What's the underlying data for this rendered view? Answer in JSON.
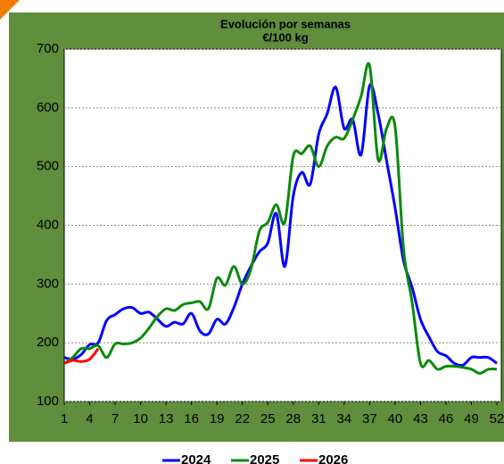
{
  "chart_data": {
    "type": "line",
    "title": "Evolución por semanas",
    "subtitle": "€/100 kg",
    "x": [
      1,
      2,
      3,
      4,
      5,
      6,
      7,
      8,
      9,
      10,
      11,
      12,
      13,
      14,
      15,
      16,
      17,
      18,
      19,
      20,
      21,
      22,
      23,
      24,
      25,
      26,
      27,
      28,
      29,
      30,
      31,
      32,
      33,
      34,
      35,
      36,
      37,
      38,
      39,
      40,
      41,
      42,
      43,
      44,
      45,
      46,
      47,
      48,
      49,
      50,
      51,
      52
    ],
    "xlim": [
      1,
      52
    ],
    "xticks": [
      1,
      4,
      7,
      10,
      13,
      16,
      19,
      22,
      25,
      28,
      31,
      34,
      37,
      40,
      43,
      46,
      49,
      52
    ],
    "ylim": [
      100,
      700
    ],
    "yticks": [
      100,
      200,
      300,
      400,
      500,
      600,
      700
    ],
    "grid": true,
    "legend": "bottom",
    "series": [
      {
        "name": "2024",
        "color": "#0000ff",
        "values": [
          175,
          172,
          180,
          197,
          200,
          238,
          248,
          258,
          260,
          250,
          252,
          240,
          228,
          235,
          232,
          250,
          220,
          215,
          240,
          232,
          260,
          300,
          330,
          355,
          370,
          420,
          330,
          450,
          490,
          470,
          555,
          590,
          635,
          565,
          580,
          520,
          638,
          590,
          510,
          430,
          340,
          295,
          240,
          210,
          185,
          178,
          165,
          162,
          175,
          175,
          175,
          165
        ]
      },
      {
        "name": "2025",
        "color": "#0a8a0a",
        "values": [
          165,
          175,
          190,
          190,
          195,
          175,
          198,
          198,
          200,
          208,
          225,
          245,
          258,
          255,
          265,
          268,
          270,
          258,
          310,
          298,
          330,
          300,
          325,
          390,
          405,
          435,
          405,
          518,
          522,
          535,
          500,
          535,
          550,
          548,
          580,
          620,
          672,
          512,
          565,
          568,
          360,
          270,
          165,
          170,
          155,
          160,
          160,
          158,
          155,
          148,
          155,
          155
        ]
      },
      {
        "name": "2026",
        "color": "#ff0000",
        "values": [
          165,
          170,
          168,
          172,
          190,
          null,
          null,
          null,
          null,
          null,
          null,
          null,
          null,
          null,
          null,
          null,
          null,
          null,
          null,
          null,
          null,
          null,
          null,
          null,
          null,
          null,
          null,
          null,
          null,
          null,
          null,
          null,
          null,
          null,
          null,
          null,
          null,
          null,
          null,
          null,
          null,
          null,
          null,
          null,
          null,
          null,
          null,
          null,
          null,
          null,
          null,
          null
        ]
      }
    ]
  }
}
